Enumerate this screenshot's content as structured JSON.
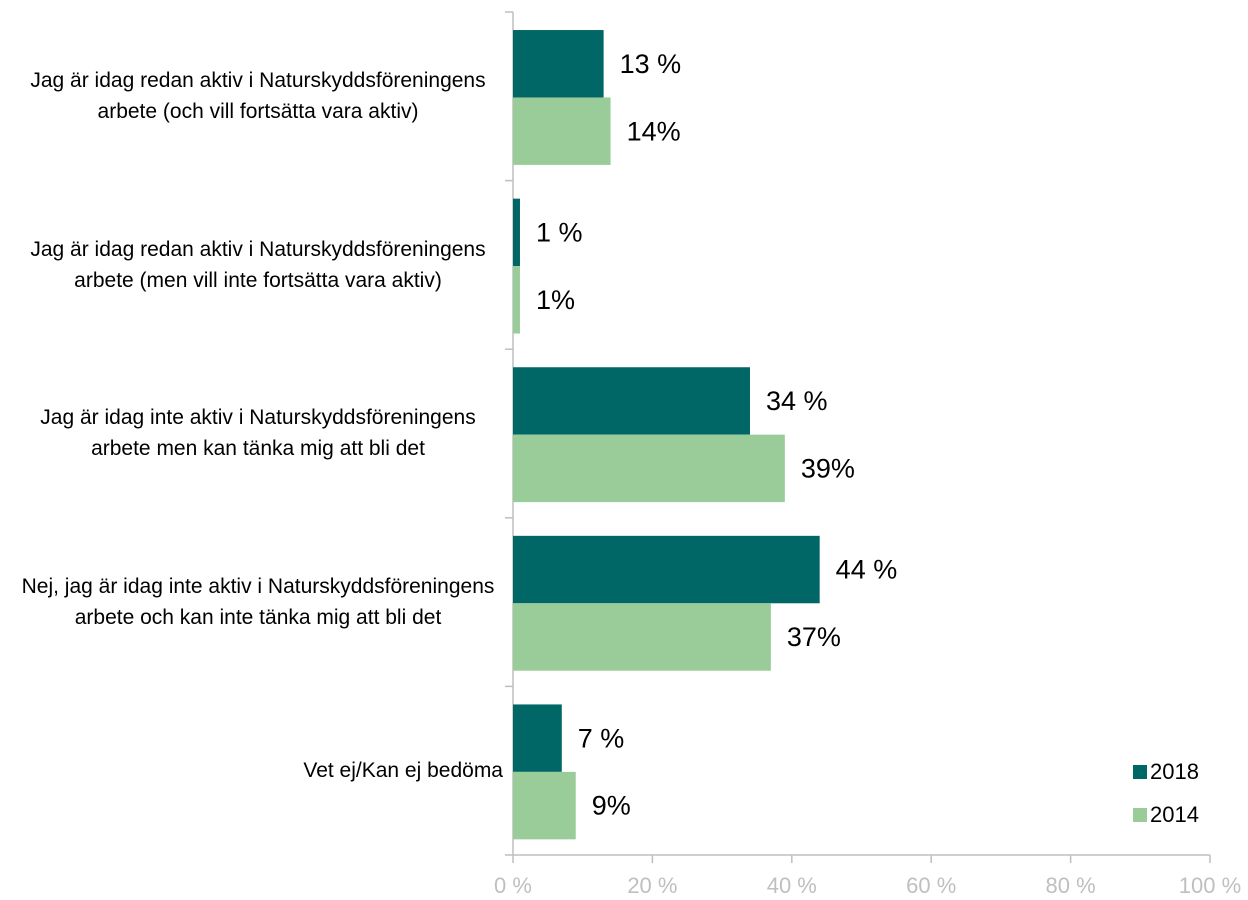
{
  "chart_data": {
    "type": "hbar",
    "categories": [
      "Jag är idag redan aktiv i Naturskyddsföreningens arbete (och vill fortsätta vara aktiv)",
      "Jag är idag redan aktiv i Naturskyddsföreningens arbete (men vill inte fortsätta vara aktiv)",
      "Jag är idag inte aktiv i Naturskyddsföreningens arbete men kan tänka mig att bli det",
      "Nej, jag är idag inte aktiv i Naturskyddsföreningens arbete och kan inte tänka mig att bli det",
      "Vet ej/Kan ej bedöma"
    ],
    "series": [
      {
        "name": "2018",
        "color": "#006666",
        "values": [
          13,
          1,
          34,
          44,
          7
        ],
        "value_labels": [
          "13 %",
          "1 %",
          "34 %",
          "44 %",
          "7 %"
        ]
      },
      {
        "name": "2014",
        "color": "#99cc99",
        "values": [
          14,
          1,
          39,
          37,
          9
        ],
        "value_labels": [
          "14%",
          "1%",
          "39%",
          "37%",
          "9%"
        ]
      }
    ],
    "xlim": [
      0,
      100
    ],
    "xticks": [
      {
        "value": 0,
        "label": "0 %"
      },
      {
        "value": 20,
        "label": "20 %"
      },
      {
        "value": 40,
        "label": "40 %"
      },
      {
        "value": 60,
        "label": "60 %"
      },
      {
        "value": 80,
        "label": "80 %"
      },
      {
        "value": 100,
        "label": "100 %"
      }
    ],
    "legend": "lower right",
    "grid": false
  }
}
